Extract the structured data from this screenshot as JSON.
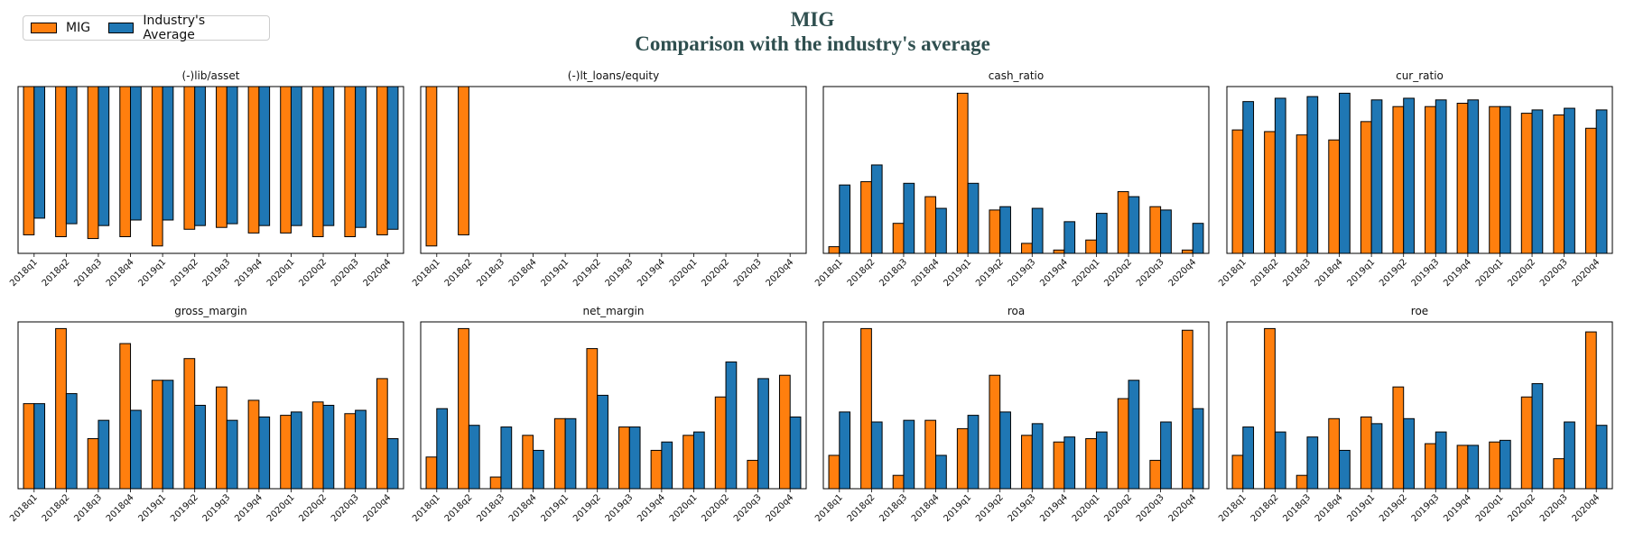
{
  "title": {
    "line1": "MIG",
    "line2": "Comparison with the industry's average"
  },
  "legend": [
    {
      "name": "MIG",
      "color": "#ff7f0e"
    },
    {
      "name": "Industry's Average",
      "color": "#1f77b4"
    }
  ],
  "categories": [
    "2018q1",
    "2018q2",
    "2018q3",
    "2018q4",
    "2019q1",
    "2019q2",
    "2019q3",
    "2019q4",
    "2020q1",
    "2020q2",
    "2020q3",
    "2020q4"
  ],
  "chart_data": [
    {
      "type": "bar",
      "title": "(-)lib/asset",
      "ylim": [
        -0.9,
        0
      ],
      "series": [
        {
          "name": "MIG",
          "values": [
            -0.8,
            -0.81,
            -0.82,
            -0.81,
            -0.86,
            -0.77,
            -0.76,
            -0.79,
            -0.79,
            -0.81,
            -0.81,
            -0.8
          ]
        },
        {
          "name": "Industry's Average",
          "values": [
            -0.71,
            -0.74,
            -0.75,
            -0.72,
            -0.72,
            -0.75,
            -0.74,
            -0.75,
            -0.75,
            -0.75,
            -0.76,
            -0.77
          ]
        }
      ]
    },
    {
      "type": "bar",
      "title": "(-)lt_loans/equity",
      "ylim": [
        -0.9,
        0
      ],
      "series": [
        {
          "name": "MIG",
          "values": [
            -0.86,
            -0.8,
            0,
            0,
            0,
            0,
            0,
            0,
            0,
            0,
            0,
            0
          ]
        },
        {
          "name": "Industry's Average",
          "values": [
            0,
            0,
            0,
            0,
            0,
            0,
            0,
            0,
            0,
            0,
            0,
            0
          ]
        }
      ]
    },
    {
      "type": "bar",
      "title": "cash_ratio",
      "ylim": [
        0,
        1
      ],
      "series": [
        {
          "name": "MIG",
          "values": [
            0.04,
            0.43,
            0.18,
            0.34,
            0.96,
            0.26,
            0.06,
            0.02,
            0.08,
            0.37,
            0.28,
            0.02
          ]
        },
        {
          "name": "Industry's Average",
          "values": [
            0.41,
            0.53,
            0.42,
            0.27,
            0.42,
            0.28,
            0.27,
            0.19,
            0.24,
            0.34,
            0.26,
            0.18
          ]
        }
      ]
    },
    {
      "type": "bar",
      "title": "cur_ratio",
      "ylim": [
        0,
        1
      ],
      "series": [
        {
          "name": "MIG",
          "values": [
            0.74,
            0.73,
            0.71,
            0.68,
            0.79,
            0.88,
            0.88,
            0.9,
            0.88,
            0.84,
            0.83,
            0.75
          ]
        },
        {
          "name": "Industry's Average",
          "values": [
            0.91,
            0.93,
            0.94,
            0.96,
            0.92,
            0.93,
            0.92,
            0.92,
            0.88,
            0.86,
            0.87,
            0.86
          ]
        }
      ]
    },
    {
      "type": "bar",
      "title": "gross_margin",
      "ylim": [
        0,
        1
      ],
      "series": [
        {
          "name": "MIG",
          "values": [
            0.51,
            0.96,
            0.3,
            0.87,
            0.65,
            0.78,
            0.61,
            0.53,
            0.44,
            0.52,
            0.45,
            0.66
          ]
        },
        {
          "name": "Industry's Average",
          "values": [
            0.51,
            0.57,
            0.41,
            0.47,
            0.65,
            0.5,
            0.41,
            0.43,
            0.46,
            0.5,
            0.47,
            0.3
          ]
        }
      ]
    },
    {
      "type": "bar",
      "title": "net_margin",
      "ylim": [
        0,
        1
      ],
      "series": [
        {
          "name": "MIG",
          "values": [
            0.19,
            0.96,
            0.07,
            0.32,
            0.42,
            0.84,
            0.37,
            0.23,
            0.32,
            0.55,
            0.17,
            0.68
          ]
        },
        {
          "name": "Industry's Average",
          "values": [
            0.48,
            0.38,
            0.37,
            0.23,
            0.42,
            0.56,
            0.37,
            0.28,
            0.34,
            0.76,
            0.66,
            0.43
          ]
        }
      ]
    },
    {
      "type": "bar",
      "title": "roa",
      "ylim": [
        0,
        1
      ],
      "series": [
        {
          "name": "MIG",
          "values": [
            0.2,
            0.96,
            0.08,
            0.41,
            0.36,
            0.68,
            0.32,
            0.28,
            0.3,
            0.54,
            0.17,
            0.95
          ]
        },
        {
          "name": "Industry's Average",
          "values": [
            0.46,
            0.4,
            0.41,
            0.2,
            0.44,
            0.46,
            0.39,
            0.31,
            0.34,
            0.65,
            0.4,
            0.48
          ]
        }
      ]
    },
    {
      "type": "bar",
      "title": "roe",
      "ylim": [
        0,
        1
      ],
      "series": [
        {
          "name": "MIG",
          "values": [
            0.2,
            0.96,
            0.08,
            0.42,
            0.43,
            0.61,
            0.27,
            0.26,
            0.28,
            0.55,
            0.18,
            0.94
          ]
        },
        {
          "name": "Industry's Average",
          "values": [
            0.37,
            0.34,
            0.31,
            0.23,
            0.39,
            0.42,
            0.34,
            0.26,
            0.29,
            0.63,
            0.4,
            0.38
          ]
        }
      ]
    }
  ]
}
